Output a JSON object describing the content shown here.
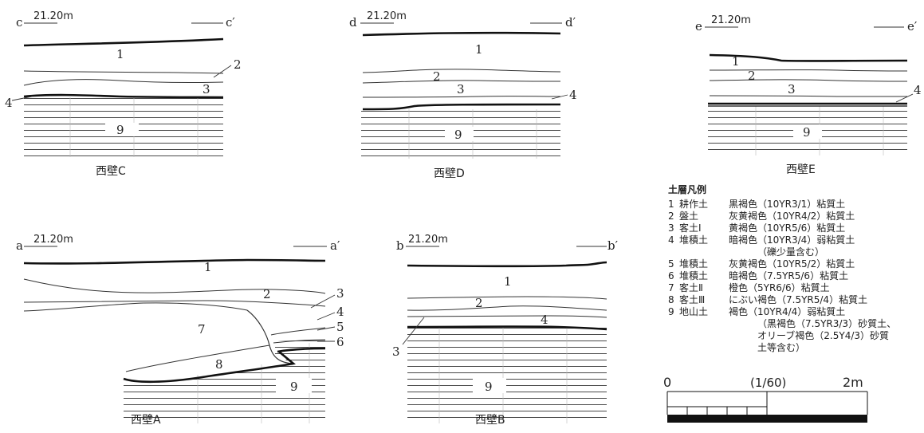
{
  "panels": {
    "c": {
      "elev": "21.20m",
      "left": "c",
      "right": "c′",
      "caption": "西壁C",
      "layers": [
        "1",
        "2",
        "3",
        "4",
        "9"
      ]
    },
    "d": {
      "elev": "21.20m",
      "left": "d",
      "right": "d′",
      "caption": "西壁D",
      "layers": [
        "1",
        "2",
        "3",
        "4",
        "9"
      ]
    },
    "e": {
      "elev": "21.20m",
      "left": "e",
      "right": "e′",
      "caption": "西壁E",
      "layers": [
        "1",
        "2",
        "3",
        "4",
        "9"
      ]
    },
    "a": {
      "elev": "21.20m",
      "left": "a",
      "right": "a′",
      "caption": "西壁A",
      "layers": [
        "1",
        "2",
        "3",
        "4",
        "5",
        "6",
        "7",
        "8",
        "9"
      ]
    },
    "b": {
      "elev": "21.20m",
      "left": "b",
      "right": "b′",
      "caption": "西壁B",
      "layers": [
        "1",
        "2",
        "3",
        "4",
        "9"
      ]
    }
  },
  "legend": {
    "title": "土層凡例",
    "items": [
      {
        "no": "1",
        "name": "耕作土",
        "desc": "黒褐色（10YR3/1）粘質土"
      },
      {
        "no": "2",
        "name": "盤土",
        "desc": "灰黄褐色（10YR4/2）粘質土"
      },
      {
        "no": "3",
        "name": "客土Ⅰ",
        "desc": "黄褐色（10YR5/6）粘質土"
      },
      {
        "no": "4",
        "name": "堆積土",
        "desc": "暗褐色（10YR3/4）弱粘質土",
        "cont": [
          "（礫少量含む）"
        ]
      },
      {
        "no": "5",
        "name": "堆積土",
        "desc": "灰黄褐色（10YR5/2）粘質土"
      },
      {
        "no": "6",
        "name": "堆積土",
        "desc": "暗褐色（7.5YR5/6）粘質土"
      },
      {
        "no": "7",
        "name": "客土Ⅱ",
        "desc": "橙色（5YR6/6）粘質土"
      },
      {
        "no": "8",
        "name": "客土Ⅲ",
        "desc": "にぶい褐色（7.5YR5/4）粘質土"
      },
      {
        "no": "9",
        "name": "地山土",
        "desc": "褐色（10YR4/4）弱粘質土",
        "cont": [
          "（黒褐色（7.5YR3/3）砂質土、",
          "オリーブ褐色（2.5Y4/3）砂質",
          "土等含む）"
        ]
      }
    ]
  },
  "scale": {
    "left": "0",
    "mid": "(1/60)",
    "right": "2m"
  }
}
